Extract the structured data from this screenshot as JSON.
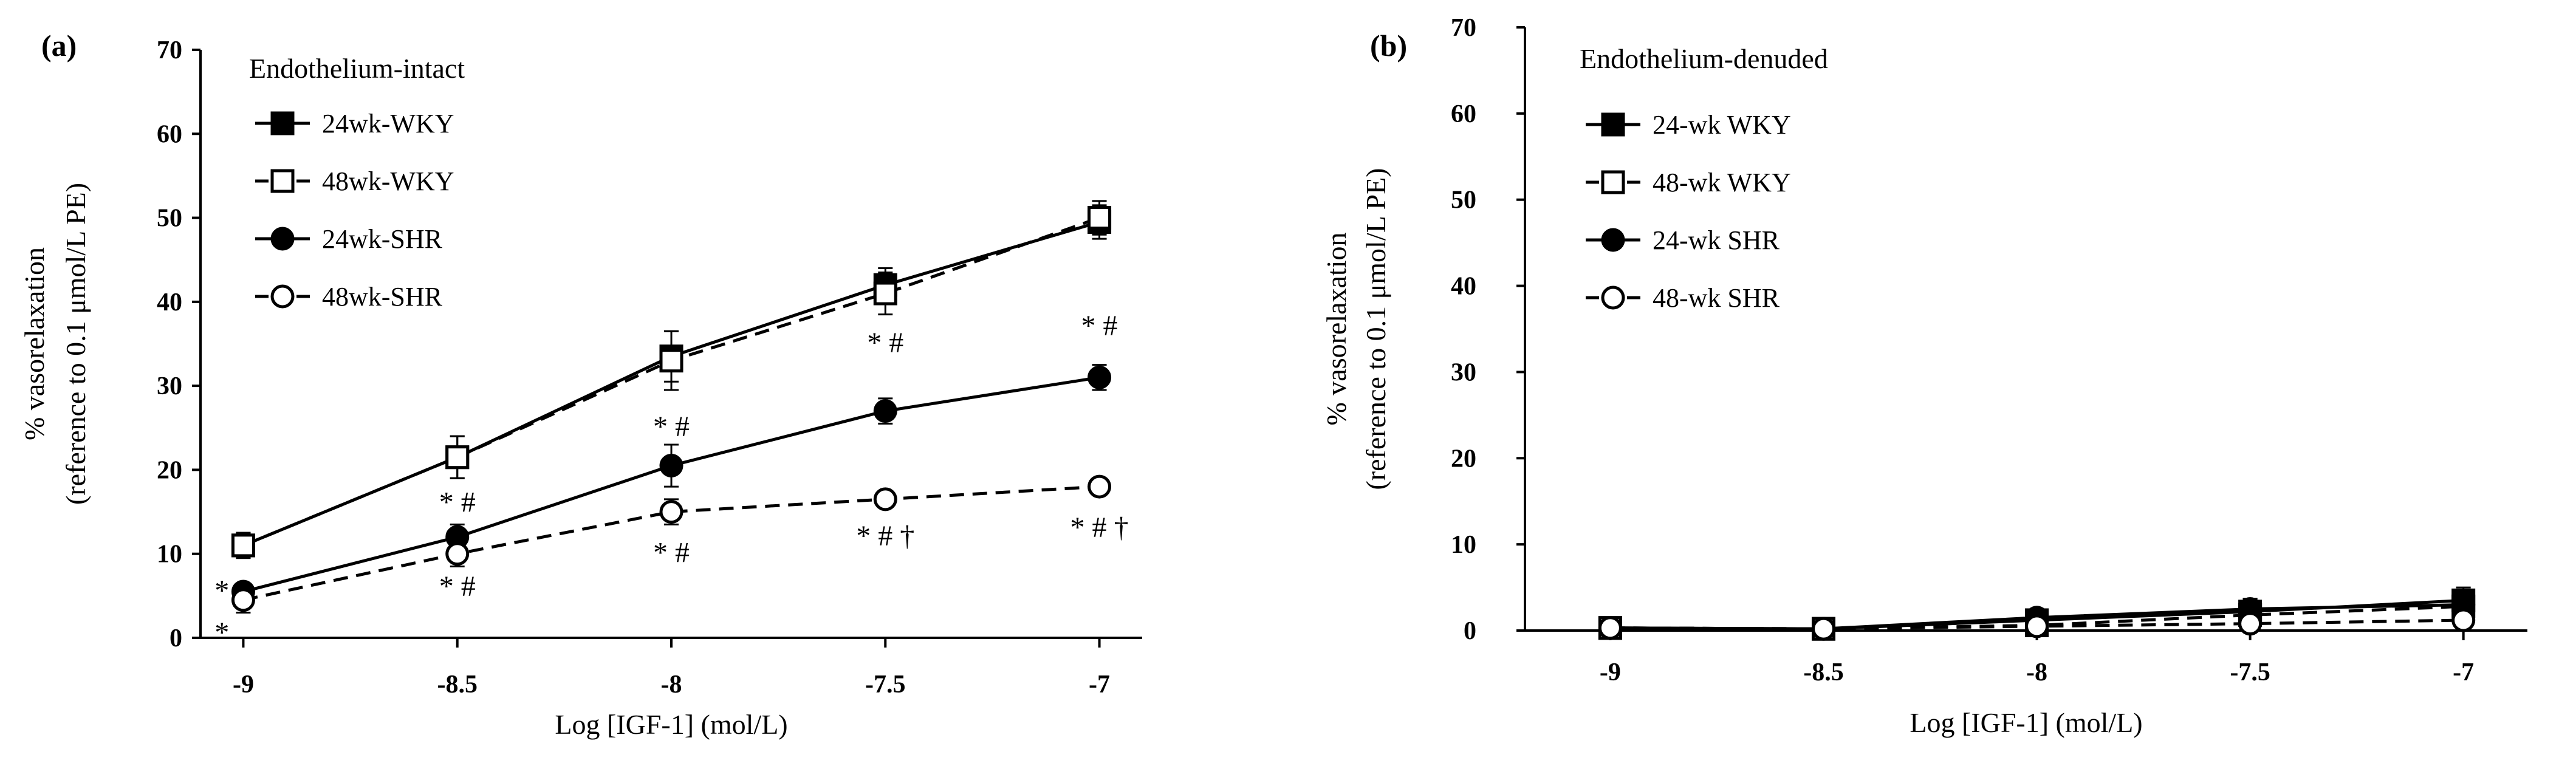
{
  "figure": {
    "panel_tags": [
      "(a)",
      "(b)"
    ]
  },
  "chart_data": [
    {
      "type": "line",
      "panel_label": "(a)",
      "title": "Endothelium-intact",
      "xlabel": "Log [IGF-1] (mol/L)",
      "ylabel_line1": "% vasorelaxation",
      "ylabel_line2": "(reference to 0.1 μmol/L PE)",
      "x": [
        -9,
        -8.5,
        -8,
        -7.5,
        -7
      ],
      "x_tick_labels": [
        "-9",
        "-8.5",
        "-8",
        "-7.5",
        "-7"
      ],
      "xlim": [
        -9.1,
        -6.9
      ],
      "ylim": [
        0,
        70
      ],
      "y_ticks": [
        0,
        10,
        20,
        30,
        40,
        50,
        60,
        70
      ],
      "legend_position": "upper-left",
      "series": [
        {
          "name": "24wk-WKY",
          "values": [
            11,
            21.5,
            33.5,
            42,
            49.5
          ],
          "errors": [
            1.5,
            2.5,
            3,
            2,
            2
          ],
          "marker": "square-filled",
          "dash": "solid"
        },
        {
          "name": "48wk-WKY",
          "values": [
            11,
            21.5,
            33,
            41,
            50
          ],
          "errors": [
            1.5,
            2.5,
            3.5,
            2.5,
            2
          ],
          "marker": "square-open",
          "dash": "dashed"
        },
        {
          "name": "24wk-SHR",
          "values": [
            5.5,
            12,
            20.5,
            27,
            31
          ],
          "errors": [
            1,
            1.5,
            2.5,
            1.5,
            1.5
          ],
          "marker": "circle-filled",
          "dash": "solid"
        },
        {
          "name": "48wk-SHR",
          "values": [
            4.5,
            10,
            15,
            16.5,
            18
          ],
          "errors": [
            1.5,
            1.5,
            1.5,
            0.5,
            0.5
          ],
          "marker": "circle-open",
          "dash": "dashed"
        }
      ],
      "annotations": [
        {
          "text": "* #",
          "x": -7.5,
          "y": 34
        },
        {
          "text": "* #",
          "x": -7,
          "y": 36
        },
        {
          "text": "* #",
          "x": -8,
          "y": 24
        },
        {
          "text": "* #",
          "x": -8.5,
          "y": 15
        },
        {
          "text": "* #",
          "x": -8.5,
          "y": 5
        },
        {
          "text": "* #",
          "x": -8,
          "y": 9
        },
        {
          "text": "* # †",
          "x": -7.5,
          "y": 11
        },
        {
          "text": "* # †",
          "x": -7,
          "y": 12
        },
        {
          "text": "*",
          "x": -9.05,
          "y": 4.5
        },
        {
          "text": "*",
          "x": -9.05,
          "y": -0.5
        }
      ]
    },
    {
      "type": "line",
      "panel_label": "(b)",
      "title": "Endothelium-denuded",
      "xlabel": "Log [IGF-1] (mol/L)",
      "ylabel_line1": "% vasorelaxation",
      "ylabel_line2": "(reference to 0.1 μmol/L PE)",
      "x": [
        -9,
        -8.5,
        -8,
        -7.5,
        -7
      ],
      "x_tick_labels": [
        "-9",
        "-8.5",
        "-8",
        "-7.5",
        "-7"
      ],
      "xlim": [
        -9.2,
        -6.85
      ],
      "ylim": [
        0,
        70
      ],
      "y_ticks": [
        0,
        10,
        20,
        30,
        40,
        50,
        60,
        70
      ],
      "legend_position": "upper-left",
      "series": [
        {
          "name": "24-wk WKY",
          "values": [
            0.3,
            0.2,
            1.2,
            2.2,
            3.5
          ],
          "errors": [
            0.3,
            0.3,
            0.6,
            1.5,
            1.5
          ],
          "marker": "square-filled",
          "dash": "solid"
        },
        {
          "name": "48-wk WKY",
          "values": [
            0.3,
            0.2,
            0.6,
            1.8,
            2.8
          ],
          "errors": [
            0.3,
            0.3,
            0.5,
            1,
            1.2
          ],
          "marker": "square-open",
          "dash": "dashed"
        },
        {
          "name": "24-wk SHR",
          "values": [
            0.3,
            0.2,
            1.5,
            2.5,
            3
          ],
          "errors": [
            0.3,
            0.3,
            0.6,
            1.2,
            1.2
          ],
          "marker": "circle-filled",
          "dash": "solid"
        },
        {
          "name": "48-wk SHR",
          "values": [
            0.3,
            0.2,
            0.5,
            0.8,
            1.2
          ],
          "errors": [
            0.3,
            0.3,
            0.4,
            0.5,
            0.6
          ],
          "marker": "circle-open",
          "dash": "dashed"
        }
      ],
      "annotations": []
    }
  ]
}
